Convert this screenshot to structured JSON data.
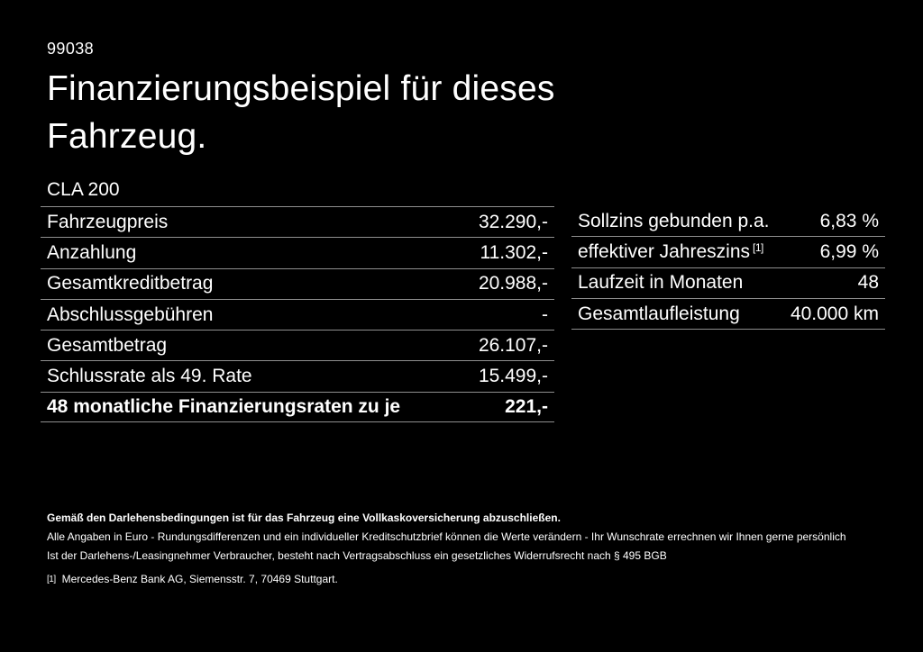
{
  "page": {
    "background_color": "#000000",
    "text_color": "#ffffff",
    "divider_color": "#8f8f8f"
  },
  "header": {
    "code": "99038",
    "title_line1": "Finanzierungsbeispiel für dieses",
    "title_line2": "Fahrzeug.",
    "model": "CLA 200"
  },
  "finance_table": {
    "rows": [
      {
        "label": "Fahrzeugpreis",
        "value": "32.290,-"
      },
      {
        "label": "Anzahlung",
        "value": "11.302,-"
      },
      {
        "label": "Gesamtkreditbetrag",
        "value": "20.988,-"
      },
      {
        "label": "Abschlussgebühren",
        "value": "-"
      },
      {
        "label": "Gesamtbetrag",
        "value": "26.107,-"
      },
      {
        "label": "Schlussrate als 49. Rate",
        "value": "15.499,-"
      },
      {
        "label": "48 monatliche Finanzierungsraten zu je",
        "value": "221,-"
      }
    ]
  },
  "conditions_table": {
    "rows": [
      {
        "label": "Sollzins gebunden p.a.",
        "value": "6,83 %"
      },
      {
        "label": "effektiver Jahreszins",
        "label_superscript": "[1]",
        "value": "6,99 %"
      },
      {
        "label": "Laufzeit in Monaten",
        "value": "48"
      },
      {
        "label": "Gesamtlaufleistung",
        "value": "40.000 km"
      }
    ]
  },
  "footer": {
    "line_bold": "Gemäß den Darlehensbedingungen ist für das Fahrzeug eine Vollkaskoversicherung abzuschließen.",
    "line2": "Alle Angaben in Euro - Rundungsdifferenzen und ein individueller Kreditschutzbrief können die Werte verändern - Ihr Wunschrate errechnen wir Ihnen gerne persönlich",
    "line3": "Ist der Darlehens-/Leasingnehmer Verbraucher, besteht nach Vertragsabschluss ein gesetzliches Widerrufsrecht nach § 495 BGB",
    "footnote_marker": "[1]",
    "footnote_text": "Mercedes-Benz Bank AG, Siemensstr. 7, 70469 Stuttgart."
  }
}
